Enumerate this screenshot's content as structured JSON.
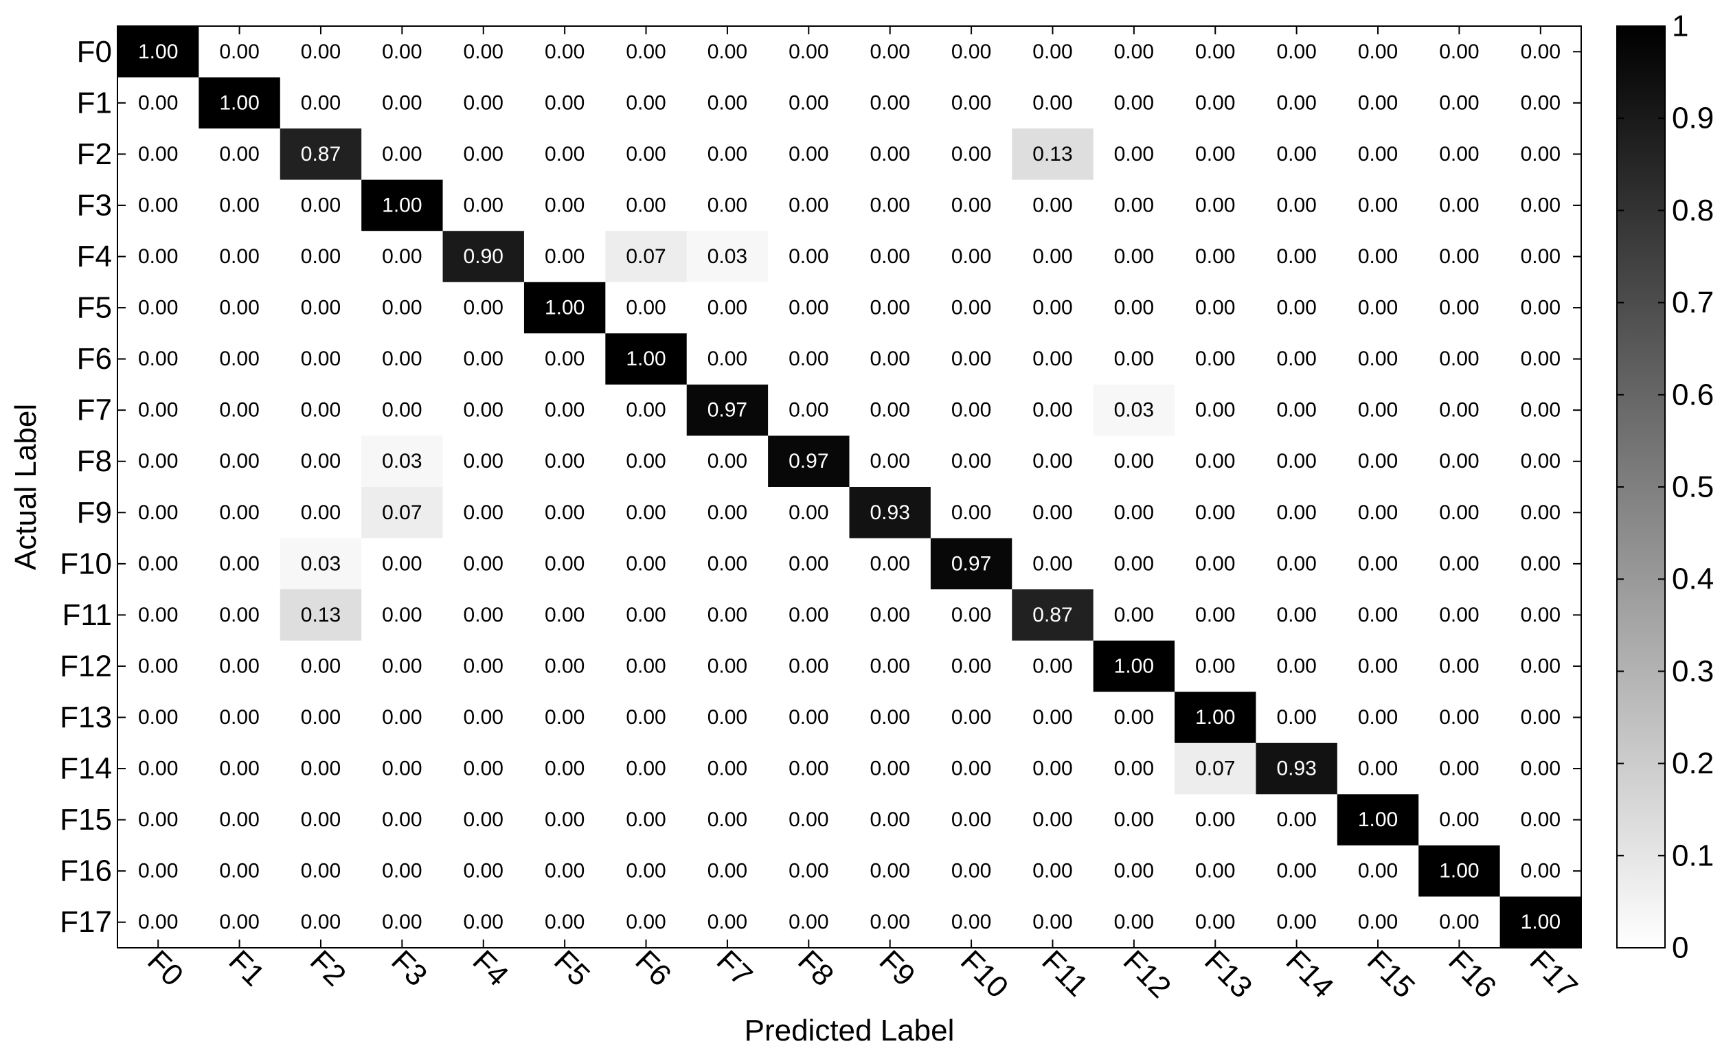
{
  "chart_data": {
    "type": "heatmap",
    "title": "",
    "xlabel": "Predicted Label",
    "ylabel": "Actual Label",
    "x_categories": [
      "F0",
      "F1",
      "F2",
      "F3",
      "F4",
      "F5",
      "F6",
      "F7",
      "F8",
      "F9",
      "F10",
      "F11",
      "F12",
      "F13",
      "F14",
      "F15",
      "F16",
      "F17"
    ],
    "y_categories": [
      "F0",
      "F1",
      "F2",
      "F3",
      "F4",
      "F5",
      "F6",
      "F7",
      "F8",
      "F9",
      "F10",
      "F11",
      "F12",
      "F13",
      "F14",
      "F15",
      "F16",
      "F17"
    ],
    "values": [
      [
        1.0,
        0.0,
        0.0,
        0.0,
        0.0,
        0.0,
        0.0,
        0.0,
        0.0,
        0.0,
        0.0,
        0.0,
        0.0,
        0.0,
        0.0,
        0.0,
        0.0,
        0.0
      ],
      [
        0.0,
        1.0,
        0.0,
        0.0,
        0.0,
        0.0,
        0.0,
        0.0,
        0.0,
        0.0,
        0.0,
        0.0,
        0.0,
        0.0,
        0.0,
        0.0,
        0.0,
        0.0
      ],
      [
        0.0,
        0.0,
        0.87,
        0.0,
        0.0,
        0.0,
        0.0,
        0.0,
        0.0,
        0.0,
        0.0,
        0.13,
        0.0,
        0.0,
        0.0,
        0.0,
        0.0,
        0.0
      ],
      [
        0.0,
        0.0,
        0.0,
        1.0,
        0.0,
        0.0,
        0.0,
        0.0,
        0.0,
        0.0,
        0.0,
        0.0,
        0.0,
        0.0,
        0.0,
        0.0,
        0.0,
        0.0
      ],
      [
        0.0,
        0.0,
        0.0,
        0.0,
        0.9,
        0.0,
        0.07,
        0.03,
        0.0,
        0.0,
        0.0,
        0.0,
        0.0,
        0.0,
        0.0,
        0.0,
        0.0,
        0.0
      ],
      [
        0.0,
        0.0,
        0.0,
        0.0,
        0.0,
        1.0,
        0.0,
        0.0,
        0.0,
        0.0,
        0.0,
        0.0,
        0.0,
        0.0,
        0.0,
        0.0,
        0.0,
        0.0
      ],
      [
        0.0,
        0.0,
        0.0,
        0.0,
        0.0,
        0.0,
        1.0,
        0.0,
        0.0,
        0.0,
        0.0,
        0.0,
        0.0,
        0.0,
        0.0,
        0.0,
        0.0,
        0.0
      ],
      [
        0.0,
        0.0,
        0.0,
        0.0,
        0.0,
        0.0,
        0.0,
        0.97,
        0.0,
        0.0,
        0.0,
        0.0,
        0.03,
        0.0,
        0.0,
        0.0,
        0.0,
        0.0
      ],
      [
        0.0,
        0.0,
        0.0,
        0.03,
        0.0,
        0.0,
        0.0,
        0.0,
        0.97,
        0.0,
        0.0,
        0.0,
        0.0,
        0.0,
        0.0,
        0.0,
        0.0,
        0.0
      ],
      [
        0.0,
        0.0,
        0.0,
        0.07,
        0.0,
        0.0,
        0.0,
        0.0,
        0.0,
        0.93,
        0.0,
        0.0,
        0.0,
        0.0,
        0.0,
        0.0,
        0.0,
        0.0
      ],
      [
        0.0,
        0.0,
        0.03,
        0.0,
        0.0,
        0.0,
        0.0,
        0.0,
        0.0,
        0.0,
        0.97,
        0.0,
        0.0,
        0.0,
        0.0,
        0.0,
        0.0,
        0.0
      ],
      [
        0.0,
        0.0,
        0.13,
        0.0,
        0.0,
        0.0,
        0.0,
        0.0,
        0.0,
        0.0,
        0.0,
        0.87,
        0.0,
        0.0,
        0.0,
        0.0,
        0.0,
        0.0
      ],
      [
        0.0,
        0.0,
        0.0,
        0.0,
        0.0,
        0.0,
        0.0,
        0.0,
        0.0,
        0.0,
        0.0,
        0.0,
        1.0,
        0.0,
        0.0,
        0.0,
        0.0,
        0.0
      ],
      [
        0.0,
        0.0,
        0.0,
        0.0,
        0.0,
        0.0,
        0.0,
        0.0,
        0.0,
        0.0,
        0.0,
        0.0,
        0.0,
        1.0,
        0.0,
        0.0,
        0.0,
        0.0
      ],
      [
        0.0,
        0.0,
        0.0,
        0.0,
        0.0,
        0.0,
        0.0,
        0.0,
        0.0,
        0.0,
        0.0,
        0.0,
        0.0,
        0.07,
        0.93,
        0.0,
        0.0,
        0.0
      ],
      [
        0.0,
        0.0,
        0.0,
        0.0,
        0.0,
        0.0,
        0.0,
        0.0,
        0.0,
        0.0,
        0.0,
        0.0,
        0.0,
        0.0,
        0.0,
        1.0,
        0.0,
        0.0
      ],
      [
        0.0,
        0.0,
        0.0,
        0.0,
        0.0,
        0.0,
        0.0,
        0.0,
        0.0,
        0.0,
        0.0,
        0.0,
        0.0,
        0.0,
        0.0,
        0.0,
        1.0,
        0.0
      ],
      [
        0.0,
        0.0,
        0.0,
        0.0,
        0.0,
        0.0,
        0.0,
        0.0,
        0.0,
        0.0,
        0.0,
        0.0,
        0.0,
        0.0,
        0.0,
        0.0,
        0.0,
        1.0
      ]
    ],
    "value_format_decimals": 2,
    "colormap": {
      "low": "#ffffff",
      "high": "#000000"
    },
    "colorbar": {
      "range": [
        0,
        1
      ],
      "ticks": [
        0,
        0.1,
        0.2,
        0.3,
        0.4,
        0.5,
        0.6,
        0.7,
        0.8,
        0.9,
        1
      ],
      "tick_labels": [
        "0",
        "0.1",
        "0.2",
        "0.3",
        "0.4",
        "0.5",
        "0.6",
        "0.7",
        "0.8",
        "0.9",
        "1"
      ]
    },
    "x_tick_rotation": "45 degrees clockwise",
    "grid": false,
    "legend": "colorbar-right"
  }
}
